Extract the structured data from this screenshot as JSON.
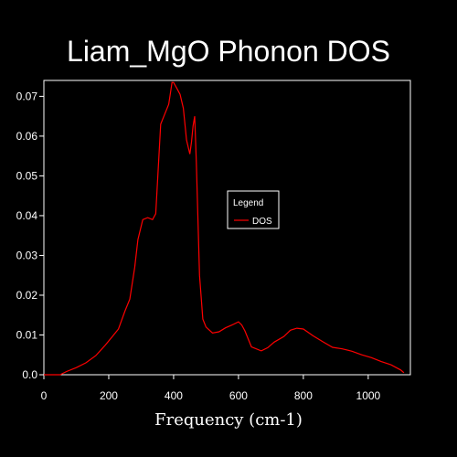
{
  "chart_data": {
    "type": "line",
    "title": "Liam_MgO Phonon DOS",
    "xlabel": "Frequency (cm-1)",
    "ylabel": "",
    "xlim": [
      0,
      1130
    ],
    "ylim": [
      0,
      0.074
    ],
    "xticks": [
      0,
      200,
      400,
      600,
      800,
      1000
    ],
    "xtick_labels": [
      "0",
      "200",
      "400",
      "600",
      "800",
      "1000"
    ],
    "yticks": [
      0,
      0.01,
      0.02,
      0.03,
      0.04,
      0.05,
      0.06,
      0.07
    ],
    "ytick_labels": [
      "0.0",
      "0.01",
      "0.02",
      "0.03",
      "0.04",
      "0.05",
      "0.06",
      "0.07"
    ],
    "grid": false,
    "legend": {
      "title": "Legend",
      "position": "right"
    },
    "series": [
      {
        "name": "DOS",
        "color": "#ff0000",
        "x": [
          0,
          50,
          70,
          100,
          130,
          160,
          190,
          210,
          230,
          250,
          265,
          280,
          290,
          305,
          320,
          335,
          345,
          360,
          370,
          385,
          395,
          400,
          410,
          420,
          430,
          440,
          450,
          455,
          460,
          465,
          470,
          480,
          490,
          500,
          520,
          540,
          560,
          580,
          600,
          610,
          620,
          640,
          670,
          690,
          710,
          740,
          760,
          780,
          800,
          830,
          860,
          890,
          920,
          950,
          980,
          1010,
          1040,
          1070,
          1100,
          1110
        ],
        "y": [
          0,
          0,
          0.0008,
          0.0018,
          0.003,
          0.0048,
          0.0075,
          0.0095,
          0.0115,
          0.016,
          0.019,
          0.027,
          0.034,
          0.039,
          0.0395,
          0.039,
          0.0405,
          0.063,
          0.065,
          0.068,
          0.0735,
          0.0735,
          0.072,
          0.0705,
          0.067,
          0.059,
          0.0555,
          0.0585,
          0.0625,
          0.065,
          0.0535,
          0.025,
          0.014,
          0.012,
          0.0105,
          0.0108,
          0.0118,
          0.0125,
          0.0133,
          0.0125,
          0.011,
          0.007,
          0.006,
          0.0068,
          0.0082,
          0.0096,
          0.0112,
          0.0117,
          0.0115,
          0.0098,
          0.0083,
          0.0069,
          0.0065,
          0.0059,
          0.005,
          0.0043,
          0.0033,
          0.0025,
          0.0012,
          0.0005
        ]
      }
    ]
  }
}
